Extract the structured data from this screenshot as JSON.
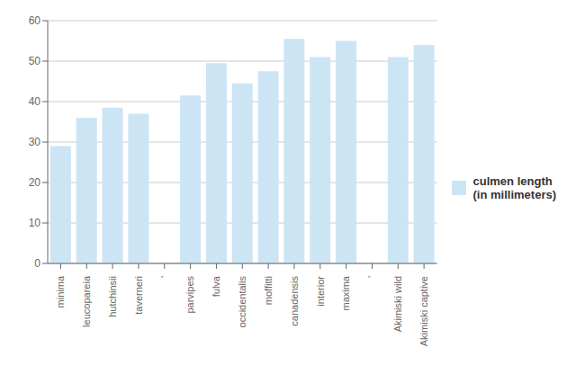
{
  "chart_data": {
    "type": "bar",
    "categories": [
      "minima",
      "leucopareia",
      "hutchinsii",
      "taverneri",
      "'",
      "parvipes",
      "fulva",
      "occidentalis",
      "moffitti",
      "canadensis",
      "interior",
      "maxima",
      "'",
      "Akimiski wild",
      "Akimiski captive"
    ],
    "series": [
      {
        "name": "culmen length\n(in millimeters)",
        "color": "#cce5f5",
        "values": [
          29,
          36,
          38.5,
          37,
          null,
          41.5,
          49.5,
          44.5,
          47.5,
          55.5,
          51,
          55,
          null,
          51,
          54
        ]
      }
    ],
    "ylim": [
      0,
      60
    ],
    "yticks": [
      0,
      10,
      20,
      30,
      40,
      50,
      60
    ],
    "grid": true,
    "legend": "right"
  }
}
